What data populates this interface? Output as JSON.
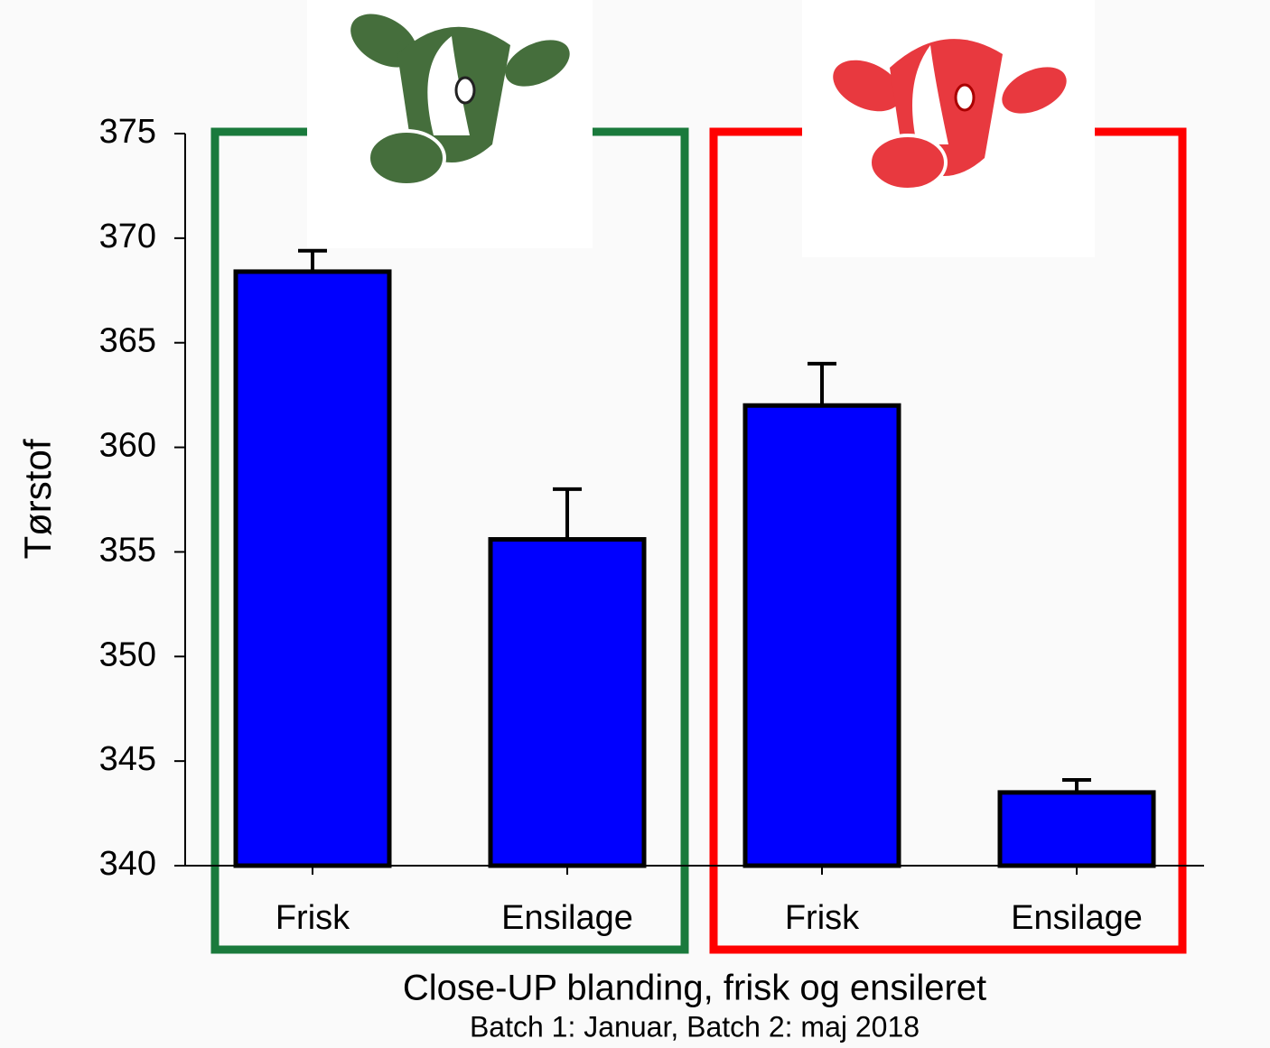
{
  "chart_data": {
    "type": "bar",
    "y_label": "Tørstof",
    "x_label": "Close-UP blanding, frisk og ensileret",
    "subtitle": "Batch 1: Januar, Batch 2: maj 2018",
    "categories": [
      "Frisk",
      "Ensilage",
      "Frisk",
      "Ensilage"
    ],
    "values": [
      368.4,
      355.6,
      362.0,
      343.5
    ],
    "errors": [
      1.0,
      2.4,
      2.0,
      0.6
    ],
    "color": "#0000ff",
    "ylim": [
      340,
      375
    ],
    "yticks": [
      340,
      345,
      350,
      355,
      360,
      365,
      370,
      375
    ],
    "grid": false
  }
}
